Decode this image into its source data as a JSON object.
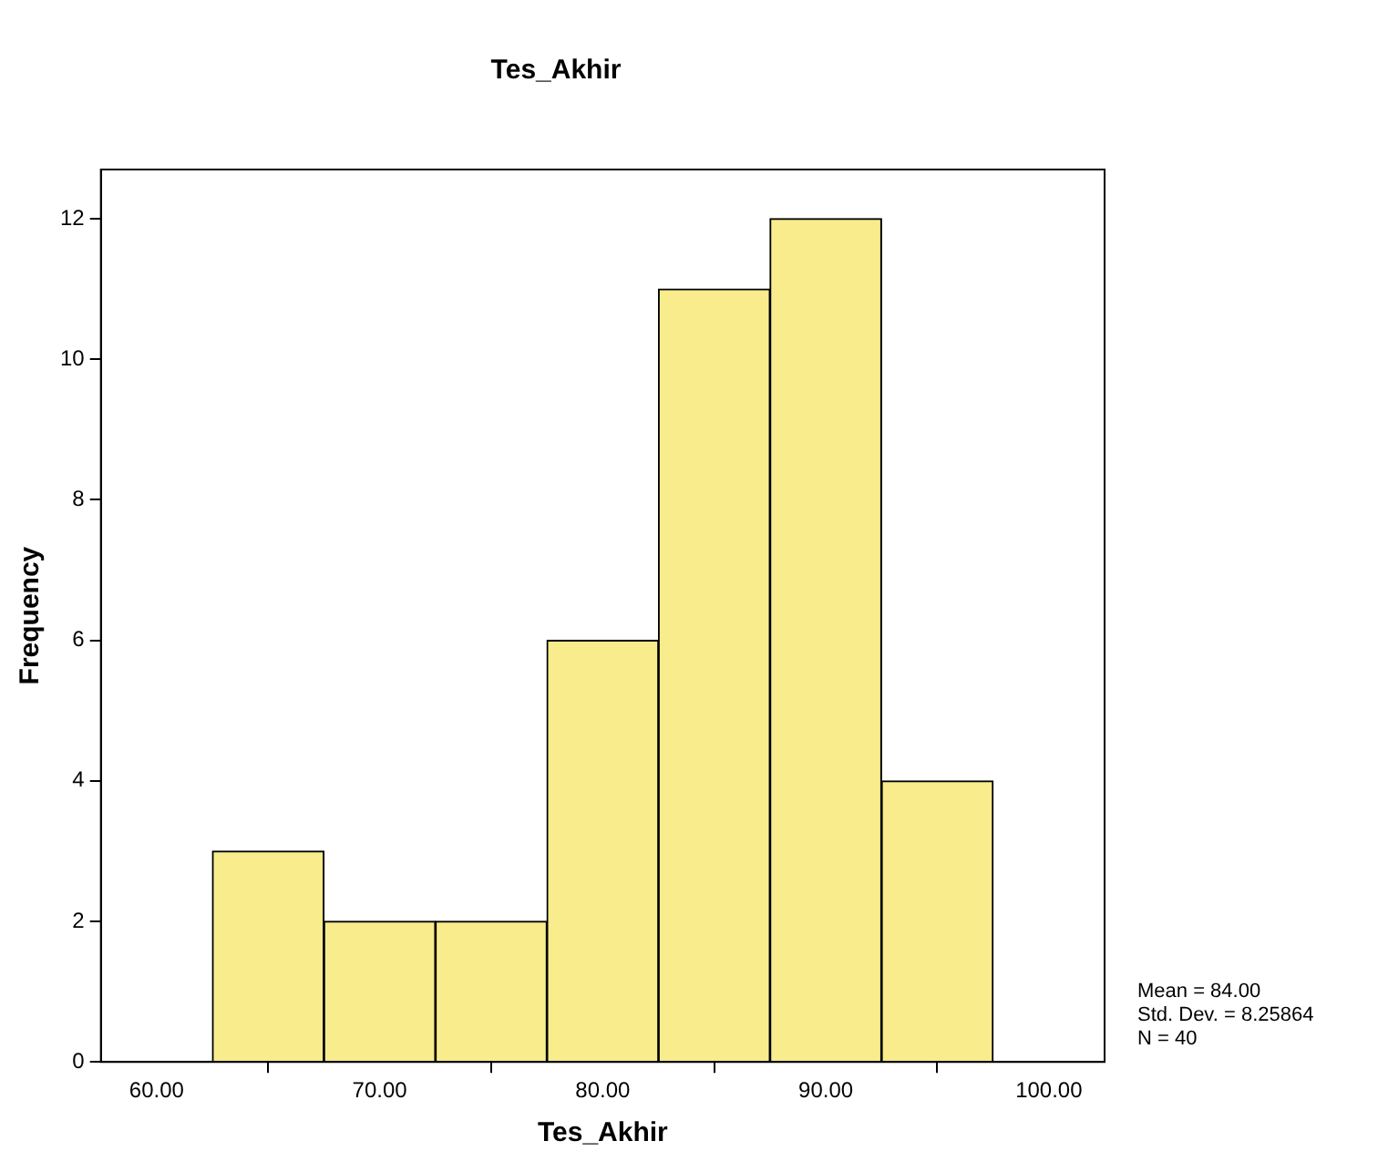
{
  "chart_data": {
    "type": "histogram",
    "title": "Tes_Akhir",
    "xlabel": "Tes_Akhir",
    "ylabel": "Frequency",
    "bins": [
      62.5,
      67.5,
      72.5,
      77.5,
      82.5,
      87.5,
      92.5,
      97.5
    ],
    "values": [
      3,
      2,
      2,
      6,
      11,
      12,
      4
    ],
    "color": "#f8ec8c",
    "xlim": [
      57.5,
      102.5
    ],
    "xticks": [
      {
        "value": 60,
        "label": "60.00"
      },
      {
        "value": 70,
        "label": "70.00"
      },
      {
        "value": 80,
        "label": "80.00"
      },
      {
        "value": 90,
        "label": "90.00"
      },
      {
        "value": 100,
        "label": "100.00"
      }
    ],
    "ylim": [
      0,
      12.7
    ],
    "yticks": [
      0,
      2,
      4,
      6,
      8,
      10,
      12
    ],
    "grid": false,
    "legend": false,
    "annotations": [
      "Mean = 84.00",
      "Std. Dev. = 8.25864",
      "N = 40"
    ]
  }
}
